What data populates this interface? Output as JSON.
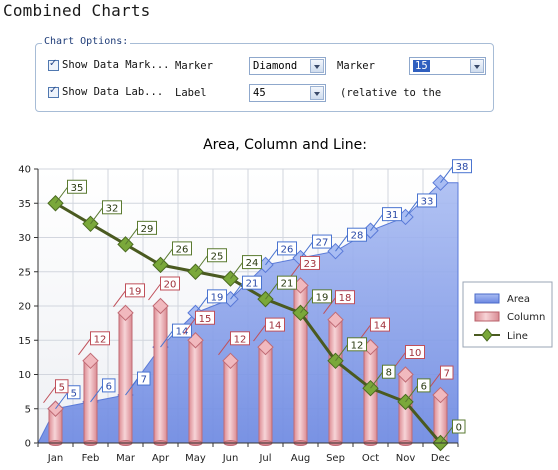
{
  "page": {
    "title": "Combined Charts"
  },
  "options": {
    "legend": "Chart Options:",
    "show_markers_label": "Show Data Mark...",
    "show_labels_label": "Show Data Lab...",
    "marker_label": "Marker",
    "marker_value": "Diamond",
    "marker_size_label": "Marker",
    "marker_size_value": "15",
    "label_label": "Label",
    "label_value": "45",
    "relative_text": "(relative to the"
  },
  "chart_data": {
    "type": "bar",
    "title": "Area, Column and Line:",
    "categories": [
      "Jan",
      "Feb",
      "Mar",
      "Apr",
      "May",
      "Jun",
      "Jul",
      "Aug",
      "Sep",
      "Oct",
      "Nov",
      "Dec"
    ],
    "ylim": [
      0,
      40
    ],
    "yticks": [
      "0",
      "5",
      "10",
      "15",
      "20",
      "25",
      "30",
      "35",
      "40"
    ],
    "grid": true,
    "legend_position": "right",
    "series": [
      {
        "name": "Area",
        "type": "area",
        "values": [
          5,
          6,
          7,
          14,
          19,
          21,
          26,
          27,
          28,
          31,
          33,
          38
        ]
      },
      {
        "name": "Column",
        "type": "bar",
        "values": [
          5,
          12,
          19,
          20,
          15,
          12,
          14,
          23,
          18,
          14,
          10,
          7
        ]
      },
      {
        "name": "Line",
        "type": "line",
        "values": [
          35,
          32,
          29,
          26,
          25,
          24,
          21,
          19,
          12,
          8,
          6,
          0
        ]
      }
    ],
    "colors": {
      "area": "#7b98e8",
      "area_marker": "#a9bdf3",
      "column": "#e7a2a8",
      "column_stroke": "#c06a74",
      "line": "#4a5a20",
      "line_marker": "#7aa83a",
      "area_label_border": "#4a74d0",
      "column_label_border": "#c0505a",
      "line_label_border": "#5a7a30"
    }
  }
}
